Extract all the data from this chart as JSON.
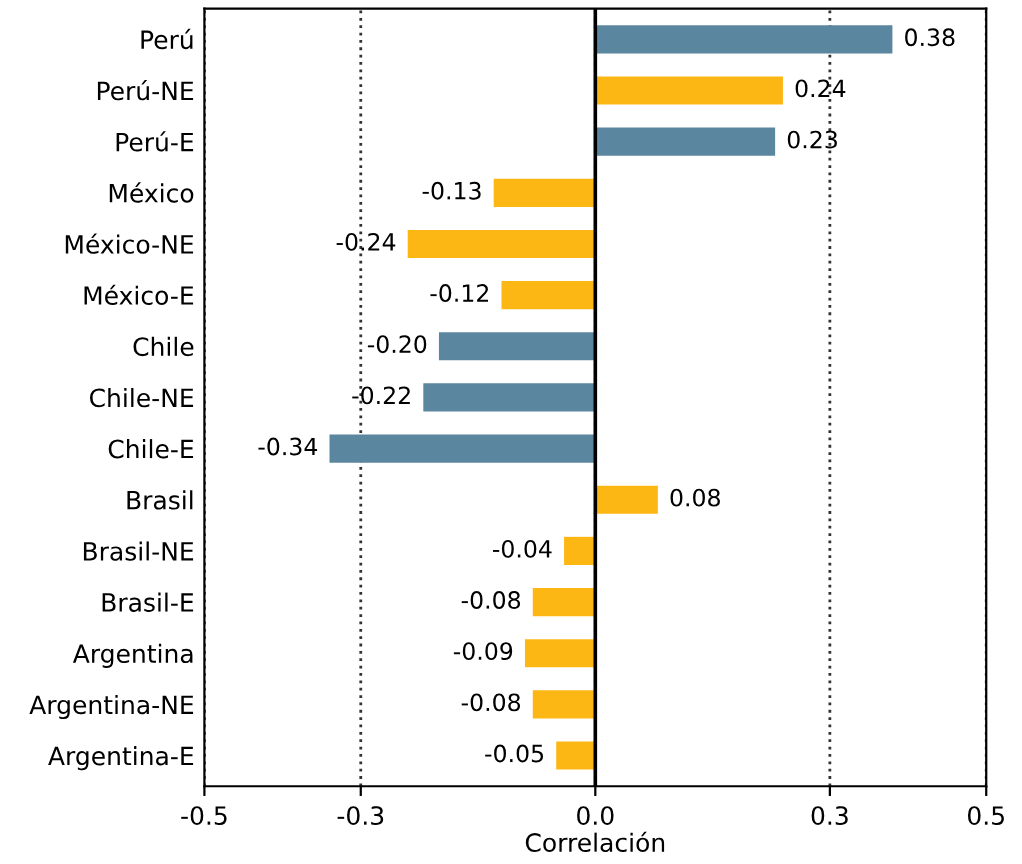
{
  "chart_data": {
    "type": "bar",
    "orientation": "horizontal",
    "xlabel": "Correlación",
    "categories": [
      "Perú",
      "Perú-NE",
      "Perú-E",
      "México",
      "México-NE",
      "México-E",
      "Chile",
      "Chile-NE",
      "Chile-E",
      "Brasil",
      "Brasil-NE",
      "Brasil-E",
      "Argentina",
      "Argentina-NE",
      "Argentina-E"
    ],
    "values": [
      0.38,
      0.24,
      0.23,
      -0.13,
      -0.24,
      -0.12,
      -0.2,
      -0.22,
      -0.34,
      0.08,
      -0.04,
      -0.08,
      -0.09,
      -0.08,
      -0.05
    ],
    "value_labels": [
      "0.38",
      "0.24",
      "0.23",
      "-0.13",
      "-0.24",
      "-0.12",
      "-0.20",
      "-0.22",
      "-0.34",
      "0.08",
      "-0.04",
      "-0.08",
      "-0.09",
      "-0.08",
      "-0.05"
    ],
    "colors": [
      "#5b86a0",
      "#fdb714",
      "#5b86a0",
      "#fdb714",
      "#fdb714",
      "#fdb714",
      "#5b86a0",
      "#5b86a0",
      "#5b86a0",
      "#fdb714",
      "#fdb714",
      "#fdb714",
      "#fdb714",
      "#fdb714",
      "#fdb714"
    ],
    "xlim": [
      -0.5,
      0.5
    ],
    "xticks": [
      {
        "value": -0.5,
        "label": "-0.5"
      },
      {
        "value": -0.3,
        "label": "-0.3"
      },
      {
        "value": 0,
        "label": "0.0"
      },
      {
        "value": 0.3,
        "label": "0.3"
      },
      {
        "value": 0.5,
        "label": "0.5"
      }
    ],
    "grid": "x",
    "line_style": "dotted",
    "ref_lines": [
      {
        "axis": "x",
        "value": 0,
        "color": "#000000",
        "line_style": "solid"
      }
    ]
  }
}
